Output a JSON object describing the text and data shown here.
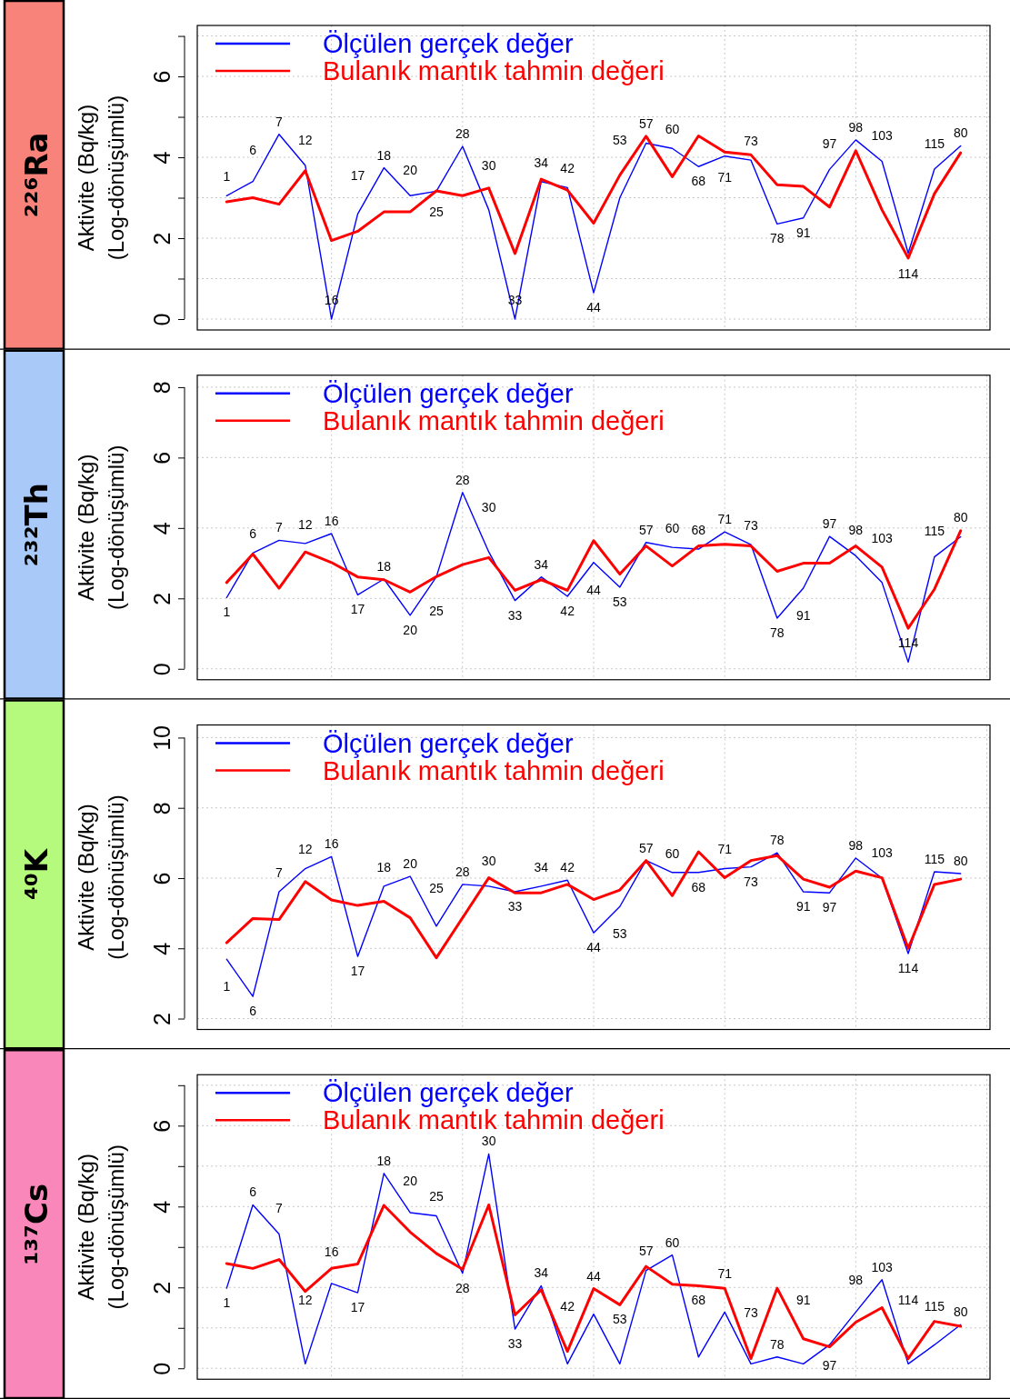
{
  "chart_data": [
    {
      "type": "line",
      "title": "²²⁶Ra",
      "ylabel": "Aktivite (Bq/kg)\n(Log-dönüşümlü)",
      "categories": [
        "1",
        "6",
        "7",
        "12",
        "16",
        "17",
        "18",
        "20",
        "25",
        "28",
        "30",
        "33",
        "34",
        "42",
        "44",
        "53",
        "57",
        "60",
        "68",
        "71",
        "73",
        "78",
        "91",
        "97",
        "98",
        "103",
        "114",
        "115",
        "80"
      ],
      "series": [
        {
          "name": "Ölçülen gerçek değer",
          "color": "#0000ff",
          "values": [
            3.05,
            3.4,
            4.57,
            3.8,
            0.0,
            2.6,
            3.74,
            3.05,
            3.16,
            4.27,
            2.7,
            0.0,
            3.4,
            3.25,
            0.65,
            3.0,
            4.35,
            4.22,
            3.77,
            4.03,
            3.93,
            2.35,
            2.5,
            3.7,
            4.43,
            3.9,
            1.63,
            3.71,
            4.28
          ]
        },
        {
          "name": "Bulanık mantık tahmin değeri",
          "color": "#ff0000",
          "values": [
            2.9,
            3.0,
            2.84,
            3.67,
            1.94,
            2.17,
            2.65,
            2.65,
            3.17,
            3.05,
            3.24,
            1.62,
            3.46,
            3.19,
            2.37,
            3.56,
            4.52,
            3.52,
            4.53,
            4.13,
            4.06,
            3.32,
            3.28,
            2.77,
            4.16,
            2.7,
            1.51,
            3.1,
            4.11
          ]
        }
      ],
      "ylim": [
        -0.27,
        7.26
      ],
      "yticks": [
        0,
        {
          "value": 1,
          "label": null
        },
        2,
        {
          "value": 3,
          "label": null
        },
        4,
        {
          "value": 5,
          "label": null
        },
        6,
        {
          "value": 7,
          "label": null
        }
      ],
      "grid": true,
      "legend": "top left"
    },
    {
      "type": "line",
      "title": "²³²Th",
      "ylabel": "Aktivite (Bq/kg)\n(Log-dönüşümlü)",
      "categories": [
        "1",
        "6",
        "7",
        "12",
        "16",
        "17",
        "18",
        "20",
        "25",
        "28",
        "30",
        "33",
        "34",
        "42",
        "44",
        "53",
        "57",
        "60",
        "68",
        "71",
        "73",
        "78",
        "91",
        "97",
        "98",
        "103",
        "114",
        "115",
        "80"
      ],
      "series": [
        {
          "name": "Ölçülen gerçek değer",
          "color": "#0000ff",
          "values": [
            2.02,
            3.29,
            3.65,
            3.56,
            3.84,
            2.1,
            2.55,
            1.52,
            2.61,
            5.01,
            3.32,
            1.94,
            2.61,
            2.06,
            3.02,
            2.32,
            3.59,
            3.45,
            3.4,
            3.89,
            3.53,
            1.44,
            2.29,
            3.76,
            3.21,
            2.45,
            0.19,
            3.18,
            3.75
          ]
        },
        {
          "name": "Bulanık mantık tahmin değeri",
          "color": "#ff0000",
          "values": [
            2.45,
            3.26,
            2.29,
            3.32,
            3.02,
            2.61,
            2.53,
            2.18,
            2.62,
            2.96,
            3.16,
            2.23,
            2.53,
            2.23,
            3.64,
            2.69,
            3.49,
            2.92,
            3.49,
            3.54,
            3.49,
            2.77,
            3.0,
            3.0,
            3.49,
            2.89,
            1.15,
            2.26,
            3.92
          ]
        }
      ],
      "ylim": [
        -0.31,
        8.34
      ],
      "yticks": [
        0,
        2,
        4,
        6,
        8
      ],
      "grid": true,
      "legend": "top left"
    },
    {
      "type": "line",
      "title": "⁴⁰K",
      "ylabel": "Aktivite (Bq/kg)\n(Log-dönüşümlü)",
      "categories": [
        "1",
        "6",
        "7",
        "12",
        "16",
        "17",
        "18",
        "20",
        "25",
        "28",
        "30",
        "33",
        "34",
        "42",
        "44",
        "53",
        "57",
        "60",
        "68",
        "71",
        "73",
        "78",
        "91",
        "97",
        "98",
        "103",
        "114",
        "115",
        "80"
      ],
      "series": [
        {
          "name": "Ölçülen gerçek değer",
          "color": "#0000ff",
          "values": [
            3.69,
            2.63,
            5.61,
            6.27,
            6.61,
            3.77,
            5.77,
            6.05,
            4.63,
            5.82,
            5.77,
            5.61,
            5.77,
            5.94,
            4.44,
            5.19,
            6.5,
            6.16,
            6.16,
            6.27,
            6.32,
            6.72,
            5.61,
            5.58,
            6.57,
            6.0,
            3.85,
            6.18,
            6.13
          ]
        },
        {
          "name": "Bulanık mantık tahmin değeri",
          "color": "#ff0000",
          "values": [
            4.16,
            4.85,
            4.82,
            5.9,
            5.38,
            5.22,
            5.34,
            4.87,
            3.73,
            4.87,
            6.01,
            5.58,
            5.58,
            5.82,
            5.39,
            5.66,
            6.5,
            5.5,
            6.75,
            6.01,
            6.5,
            6.64,
            5.97,
            5.74,
            6.2,
            6.01,
            4.0,
            5.82,
            5.97
          ]
        }
      ],
      "ylim": [
        1.69,
        10.36
      ],
      "yticks": [
        2,
        4,
        6,
        8,
        10
      ],
      "grid": true,
      "legend": "top left"
    },
    {
      "type": "line",
      "title": "¹³⁷Cs",
      "ylabel": "Aktivite (Bq/kg)\n(Log-dönüşümlü)",
      "categories": [
        "1",
        "6",
        "7",
        "12",
        "16",
        "17",
        "18",
        "20",
        "25",
        "28",
        "30",
        "33",
        "34",
        "42",
        "44",
        "53",
        "57",
        "60",
        "68",
        "71",
        "73",
        "78",
        "91",
        "97",
        "98",
        "103",
        "114",
        "115",
        "80"
      ],
      "series": [
        {
          "name": "Ölçülen gerçek değer",
          "color": "#0000ff",
          "values": [
            1.98,
            4.04,
            3.32,
            0.11,
            2.1,
            1.87,
            4.82,
            3.85,
            3.77,
            2.35,
            5.3,
            0.97,
            2.04,
            0.11,
            1.34,
            0.11,
            2.42,
            2.8,
            0.28,
            1.39,
            0.11,
            0.28,
            0.11,
            0.58,
            1.39,
            2.19,
            0.11,
            0.58,
            1.08
          ]
        },
        {
          "name": "Bulanık mantık tahmin değeri",
          "color": "#ff0000",
          "values": [
            2.59,
            2.47,
            2.69,
            1.9,
            2.47,
            2.58,
            4.03,
            3.37,
            2.84,
            2.45,
            4.04,
            1.32,
            1.94,
            0.42,
            1.97,
            1.57,
            2.52,
            2.08,
            2.04,
            1.98,
            0.24,
            1.98,
            0.73,
            0.53,
            1.14,
            1.5,
            0.24,
            1.16,
            1.04
          ]
        }
      ],
      "ylim": [
        -0.27,
        7.26
      ],
      "yticks": [
        0,
        {
          "value": 1,
          "label": null
        },
        2,
        {
          "value": 3,
          "label": null
        },
        4,
        {
          "value": 5,
          "label": null
        },
        6,
        {
          "value": 7,
          "label": null
        }
      ],
      "grid": true,
      "legend": "top left"
    }
  ]
}
